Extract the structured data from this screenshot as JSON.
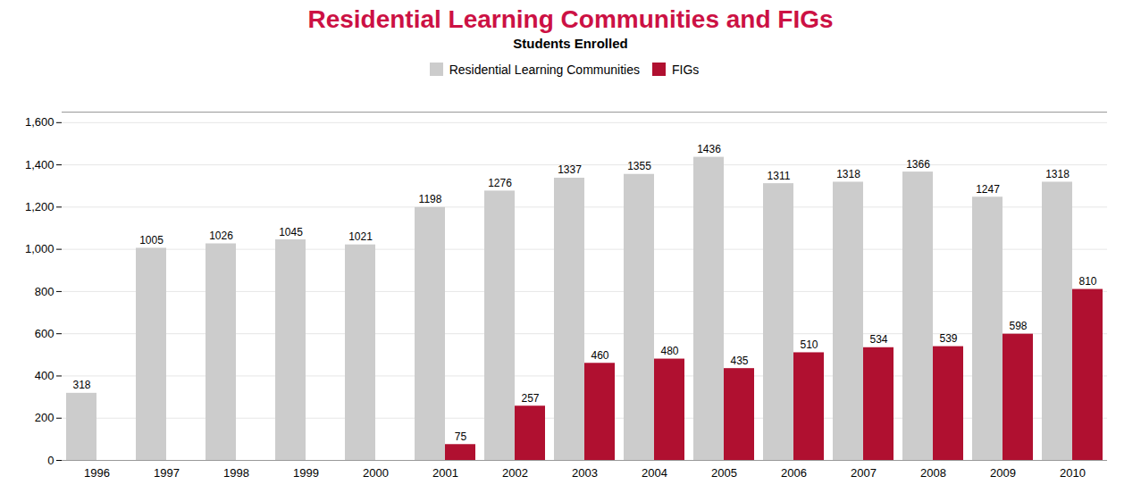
{
  "chart_data": {
    "type": "bar",
    "title": "Residential Learning Communities and FIGs",
    "subtitle": "Students Enrolled",
    "categories": [
      "1996",
      "1997",
      "1998",
      "1999",
      "2000",
      "2001",
      "2002",
      "2003",
      "2004",
      "2005",
      "2006",
      "2007",
      "2008",
      "2009",
      "2010"
    ],
    "series": [
      {
        "name": "Residential Learning Communities",
        "color": "#cccccc",
        "values": [
          318,
          1005,
          1026,
          1045,
          1021,
          1198,
          1276,
          1337,
          1355,
          1436,
          1311,
          1318,
          1366,
          1247,
          1318
        ]
      },
      {
        "name": "FIGs",
        "color": "#b01030",
        "values": [
          0,
          0,
          0,
          0,
          0,
          75,
          257,
          460,
          480,
          435,
          510,
          534,
          539,
          598,
          810
        ],
        "value_labels": [
          null,
          null,
          null,
          null,
          null,
          "75",
          "257",
          "460",
          "480",
          "435",
          "510",
          "534",
          "539",
          "598",
          "810"
        ]
      }
    ],
    "ylim": [
      0,
      1650
    ],
    "yticks": [
      0,
      200,
      400,
      600,
      800,
      1000,
      1200,
      1400,
      1600
    ],
    "grid": true,
    "legend": "top",
    "data_labels": true
  }
}
